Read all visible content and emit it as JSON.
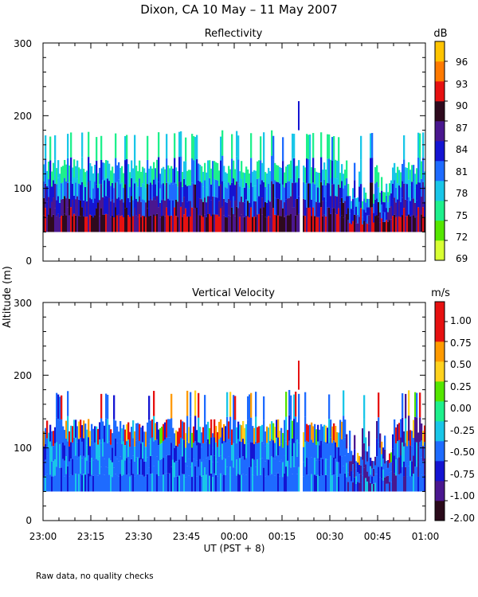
{
  "figure": {
    "title": "Dixon, CA 10 May – 11 May 2007",
    "ylabel": "Altitude  (m)",
    "xlabel": "UT  (PST + 8)",
    "footnote": "Raw data, no quality checks"
  },
  "chart_data": [
    {
      "type": "heatmap",
      "title": "Reflectivity",
      "units": "dB",
      "x_ticks": [
        "23:00",
        "23:15",
        "23:30",
        "23:45",
        "00:00",
        "00:15",
        "00:30",
        "00:45",
        "01:00"
      ],
      "x_minutes": [
        0,
        120
      ],
      "ylim": [
        0,
        300
      ],
      "y_ticks": [
        0,
        100,
        200,
        300
      ],
      "colorbar": {
        "labels": [
          "69",
          "72",
          "75",
          "78",
          "81",
          "84",
          "87",
          "90",
          "93",
          "96"
        ],
        "values": [
          69,
          72,
          75,
          78,
          81,
          84,
          87,
          90,
          93,
          96
        ],
        "colors": [
          "#d8ff33",
          "#55e600",
          "#1ef08c",
          "#19c6e8",
          "#1e6bff",
          "#1414d2",
          "#4a178f",
          "#2e0a1e",
          "#e61111",
          "#ff7a00",
          "#ffc400"
        ]
      },
      "data_bottom_m": 40,
      "typical_top_m": [
        120,
        180
      ],
      "echo_gap_minutes": [
        80.5,
        81.5
      ],
      "isolated_echo": {
        "minute": 80,
        "altitude_m": [
          180,
          220
        ]
      }
    },
    {
      "type": "heatmap",
      "title": "Vertical Velocity",
      "units": "m/s",
      "x_ticks": [
        "23:00",
        "23:15",
        "23:30",
        "23:45",
        "00:00",
        "00:15",
        "00:30",
        "00:45",
        "01:00"
      ],
      "x_minutes": [
        0,
        120
      ],
      "ylim": [
        0,
        300
      ],
      "y_ticks": [
        0,
        100,
        200,
        300
      ],
      "colorbar": {
        "labels": [
          "-2.00",
          "-1.00",
          "-0.75",
          "-0.50",
          "-0.25",
          "0.00",
          "0.25",
          "0.50",
          "0.75",
          "1.00"
        ],
        "values": [
          -2.0,
          -1.0,
          -0.75,
          -0.5,
          -0.25,
          0.0,
          0.25,
          0.5,
          0.75,
          1.0
        ],
        "colors": [
          "#2a0a1a",
          "#4a178f",
          "#1414d2",
          "#1e6bff",
          "#19c6e8",
          "#1ef08c",
          "#55e600",
          "#ffd21e",
          "#ff9a00",
          "#e61111",
          "#e61111"
        ]
      },
      "data_bottom_m": 40,
      "typical_top_m": [
        120,
        180
      ],
      "echo_gap_minutes": [
        80.5,
        81.5
      ],
      "isolated_echo": {
        "minute": 80,
        "altitude_m": [
          180,
          220
        ]
      }
    }
  ]
}
